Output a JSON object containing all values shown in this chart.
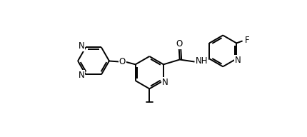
{
  "background_color": "#ffffff",
  "line_color": "#000000",
  "line_width": 1.4,
  "font_size": 8.5,
  "xlim": [
    0,
    10
  ],
  "ylim": [
    0.5,
    5.5
  ]
}
